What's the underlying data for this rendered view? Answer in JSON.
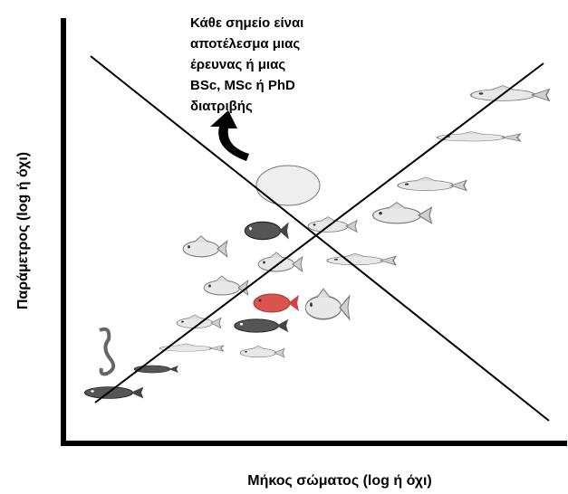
{
  "annotation": {
    "lines": [
      "Κάθε σημείο είναι",
      "αποτέλεσμα μιας",
      "έρευνας  ή μιας",
      "BSc, MSc ή PhD",
      "διατριβής"
    ]
  },
  "axes": {
    "x_label": "Μήκος σώματος (log ή όχι)",
    "y_label": "Παράμετρος (log ή όχι)"
  }
}
